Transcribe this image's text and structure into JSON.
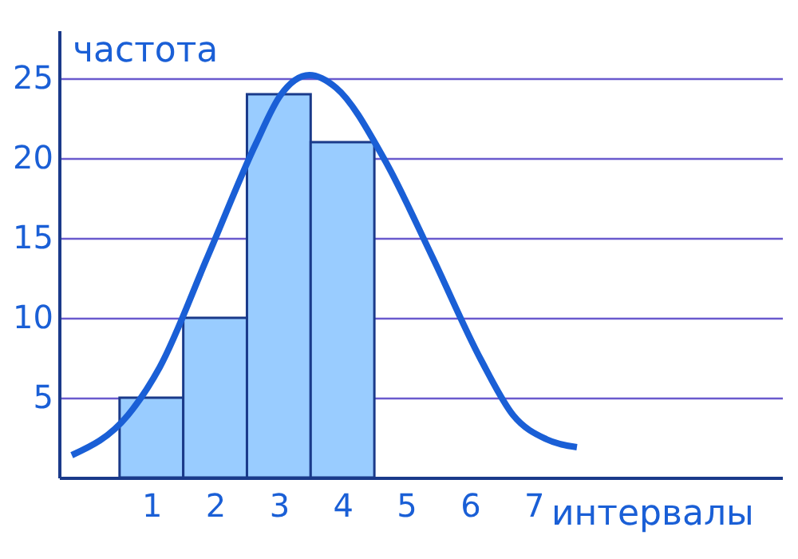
{
  "chart_data": {
    "type": "histogram",
    "xlabel": "интервалы",
    "ylabel": "частота",
    "bins": [
      0.5,
      1.5,
      2.5,
      3.5,
      4.5
    ],
    "values": [
      5,
      10,
      24,
      21
    ],
    "color": "#99ccff",
    "series": [
      {
        "type": "line",
        "color": "#1a5fd6",
        "x": [
          -0.25,
          0.63,
          1.13,
          1.89,
          2.64,
          3.02,
          3.48,
          3.9,
          4.66,
          5.4,
          6.17,
          6.68,
          7.2,
          7.68
        ],
        "values": [
          1.4,
          3.9,
          6.9,
          13.9,
          20.9,
          23.9,
          25.2,
          24.4,
          19.9,
          13.9,
          7.4,
          3.9,
          2.4,
          1.9
        ]
      }
    ],
    "xlim": [
      -0.45,
      10.9
    ],
    "ylim": [
      0,
      28
    ],
    "xticks": [
      1,
      2,
      3,
      4,
      5,
      6,
      7
    ],
    "yticks": [
      5,
      10,
      15,
      20,
      25
    ],
    "grid": "y"
  }
}
